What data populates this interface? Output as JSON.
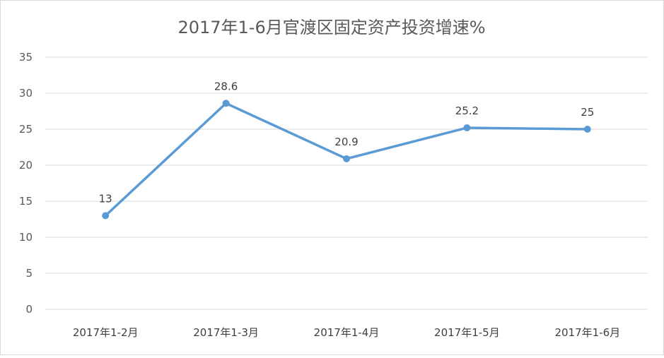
{
  "chart_data": {
    "type": "line",
    "title": "2017年1-6月官渡区固定资产投资增速%",
    "xlabel": "",
    "ylabel": "",
    "categories": [
      "2017年1-2月",
      "2017年1-3月",
      "2017年1-4月",
      "2017年1-5月",
      "2017年1-6月"
    ],
    "series": [
      {
        "values": [
          13,
          28.6,
          20.9,
          25.2,
          25
        ],
        "color": "#5b9bd5"
      }
    ],
    "data_labels": [
      "13",
      "28.6",
      "20.9",
      "25.2",
      "25"
    ],
    "ylim": [
      0,
      35
    ],
    "yticks": [
      0,
      5,
      10,
      15,
      20,
      25,
      30,
      35
    ],
    "grid": true,
    "legend": "none"
  }
}
